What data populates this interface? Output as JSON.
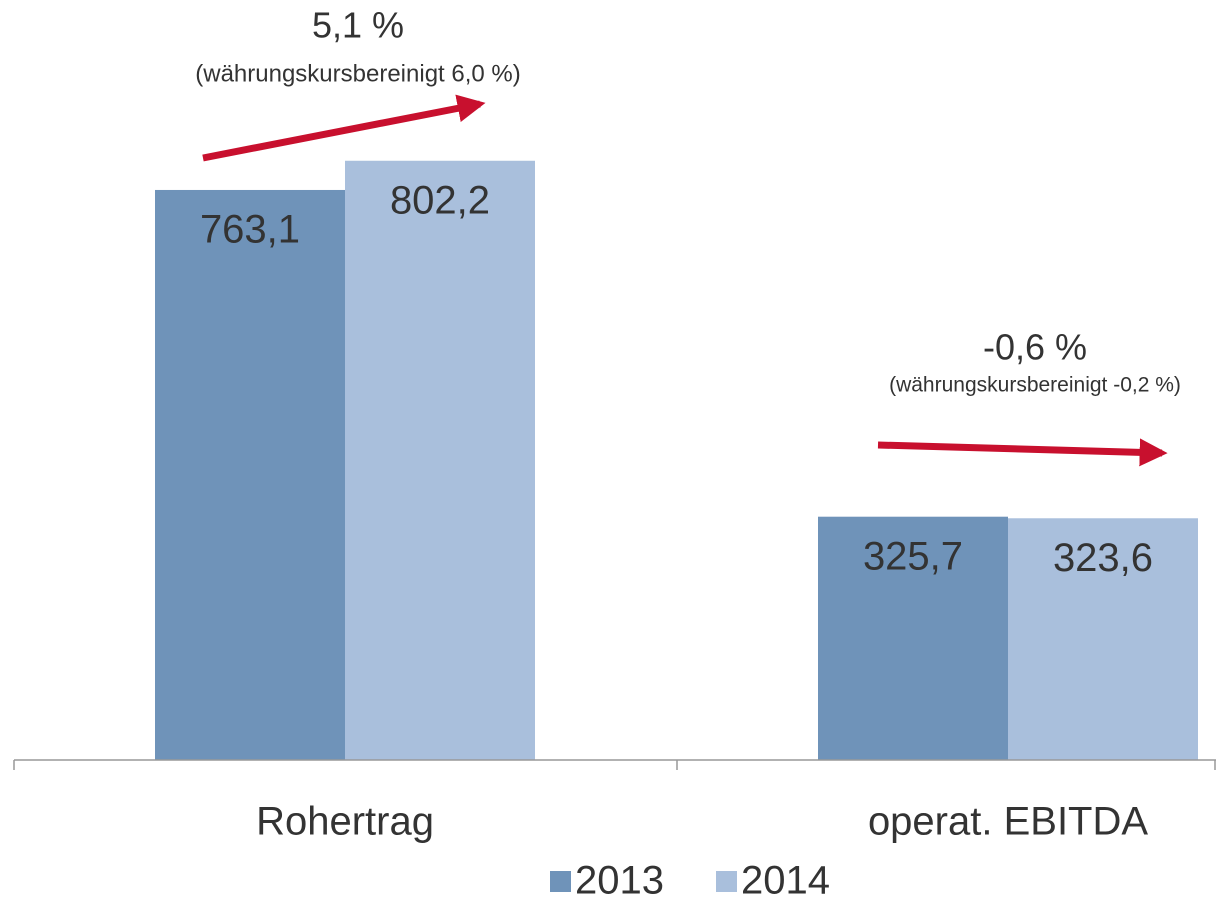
{
  "chart_data": {
    "type": "bar",
    "categories": [
      "Rohertrag",
      "operat. EBITDA"
    ],
    "series": [
      {
        "name": "2013",
        "color": "#6f93b9",
        "values": [
          763.1,
          325.7
        ],
        "value_labels": [
          "763,1",
          "325,7"
        ]
      },
      {
        "name": "2014",
        "color": "#a9bfdc",
        "values": [
          802.2,
          323.6
        ],
        "value_labels": [
          "802,2",
          "323,6"
        ]
      }
    ],
    "ylim": [
      0,
      1000
    ],
    "annotations": [
      {
        "text": "5,1 %",
        "subtext": "(währungskursbereinigt 6,0 %)"
      },
      {
        "text": "-0,6 %",
        "subtext": "(währungskursbereinigt -0,2 %)"
      }
    ],
    "arrow_color": "#c8102e",
    "legend": "bottom"
  }
}
